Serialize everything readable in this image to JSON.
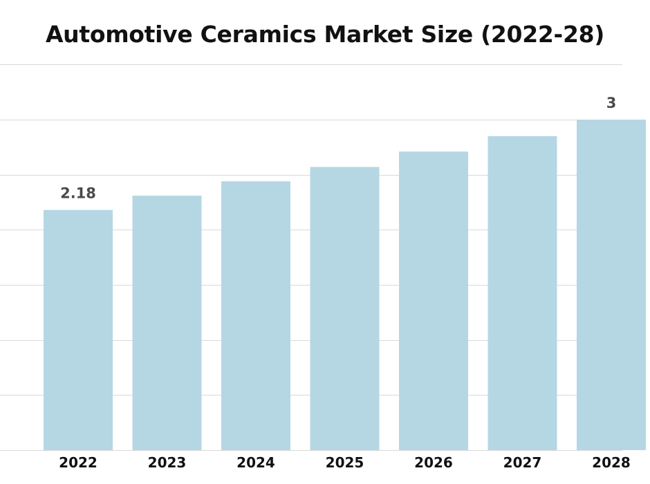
{
  "chart_data": {
    "type": "bar",
    "title": "Automotive Ceramics Market Size (2022-28)",
    "categories": [
      "2022",
      "2023",
      "2024",
      "2025",
      "2026",
      "2027",
      "2028"
    ],
    "values": [
      2.18,
      2.31,
      2.44,
      2.57,
      2.71,
      2.85,
      3
    ],
    "data_labels": [
      "2.18",
      "",
      "",
      "",
      "",
      "",
      "3"
    ],
    "xlabel": "",
    "ylabel": "",
    "ylim": [
      0,
      3.5
    ],
    "grid": true,
    "legend": "none",
    "bar_color": "#b5d7e4",
    "grid_color": "#d9d9d9",
    "label_color": "#4a4a4a",
    "tick_color": "#111111"
  }
}
